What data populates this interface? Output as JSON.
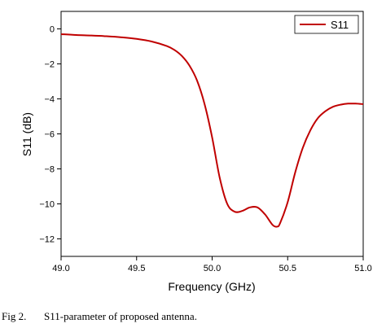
{
  "chart_data": {
    "type": "line",
    "xlabel": "Frequency (GHz)",
    "ylabel": "S11 (dB)",
    "xlim": [
      49.0,
      51.0
    ],
    "ylim": [
      -13.0,
      1.0
    ],
    "xticks": [
      49.0,
      49.5,
      50.0,
      50.5,
      51.0
    ],
    "xtick_labels": [
      "49.0",
      "49.5",
      "50.0",
      "50.5",
      "51.0"
    ],
    "yticks": [
      0,
      -2,
      -4,
      -6,
      -8,
      -10,
      -12
    ],
    "ytick_labels": [
      "0",
      "−2",
      "−4",
      "−6",
      "−8",
      "−10",
      "−12"
    ],
    "grid": false,
    "legend_position": "top-right",
    "series": [
      {
        "name": "S11",
        "color": "#c00000",
        "x": [
          49.0,
          49.1,
          49.2,
          49.3,
          49.4,
          49.5,
          49.6,
          49.7,
          49.75,
          49.8,
          49.85,
          49.9,
          49.95,
          50.0,
          50.05,
          50.1,
          50.15,
          50.2,
          50.25,
          50.3,
          50.35,
          50.4,
          50.43,
          50.45,
          50.5,
          50.55,
          50.6,
          50.65,
          50.7,
          50.75,
          50.8,
          50.85,
          50.9,
          50.95,
          51.0
        ],
        "y": [
          -0.3,
          -0.35,
          -0.38,
          -0.42,
          -0.48,
          -0.57,
          -0.72,
          -0.98,
          -1.2,
          -1.55,
          -2.1,
          -2.95,
          -4.3,
          -6.2,
          -8.5,
          -10.0,
          -10.45,
          -10.4,
          -10.2,
          -10.2,
          -10.6,
          -11.2,
          -11.3,
          -11.1,
          -9.9,
          -8.2,
          -6.8,
          -5.8,
          -5.1,
          -4.7,
          -4.45,
          -4.33,
          -4.27,
          -4.27,
          -4.3
        ]
      }
    ]
  },
  "caption": {
    "fig_label": "Fig 2.",
    "text": "S11-parameter of proposed antenna."
  }
}
